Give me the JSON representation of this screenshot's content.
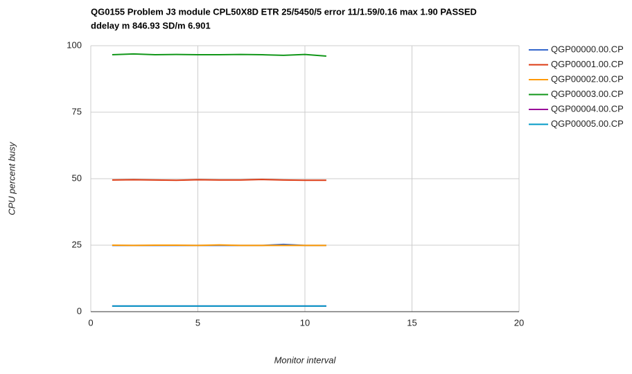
{
  "chart_data": {
    "type": "line",
    "title": [
      "QG0155 Problem J3 module CPL50X8D ETR 25/5450/5 error 11/1.59/0.16 max 1.90 PASSED",
      "ddelay m 846.93 SD/m 6.901"
    ],
    "x_label": "Monitor interval",
    "y_label": "CPU percent busy",
    "x": [
      1,
      2,
      3,
      4,
      5,
      6,
      7,
      8,
      9,
      10,
      11
    ],
    "xlim": [
      0,
      20
    ],
    "xticks": [
      0,
      5,
      10,
      15,
      20
    ],
    "ylim": [
      0,
      100
    ],
    "yticks": [
      0,
      25,
      50,
      75,
      100
    ],
    "grid": true,
    "legend": "right",
    "series": [
      {
        "name": "QGP00000.00.CP",
        "color": "#3366cc",
        "values": [
          24.9,
          24.9,
          24.9,
          24.9,
          24.9,
          24.9,
          24.9,
          24.9,
          25.3,
          24.9,
          24.9
        ]
      },
      {
        "name": "QGP00001.00.CP",
        "color": "#dc3912",
        "values": [
          49.5,
          49.6,
          49.5,
          49.4,
          49.6,
          49.5,
          49.5,
          49.7,
          49.5,
          49.4,
          49.4
        ]
      },
      {
        "name": "QGP00002.00.CP",
        "color": "#ff9900",
        "values": [
          25.0,
          24.9,
          25.0,
          25.0,
          24.9,
          25.1,
          24.9,
          24.9,
          24.9,
          24.9,
          24.9
        ]
      },
      {
        "name": "QGP00003.00.CP",
        "color": "#109618",
        "values": [
          96.6,
          96.9,
          96.6,
          96.7,
          96.6,
          96.6,
          96.7,
          96.6,
          96.4,
          96.7,
          96.1
        ]
      },
      {
        "name": "QGP00004.00.CP",
        "color": "#990099",
        "values": [
          2.1,
          2.1,
          2.1,
          2.1,
          2.1,
          2.1,
          2.1,
          2.1,
          2.1,
          2.1,
          2.1
        ]
      },
      {
        "name": "QGP00005.00.CP",
        "color": "#0099c6",
        "values": [
          2.1,
          2.1,
          2.1,
          2.1,
          2.1,
          2.1,
          2.1,
          2.1,
          2.1,
          2.1,
          2.1
        ]
      }
    ]
  }
}
